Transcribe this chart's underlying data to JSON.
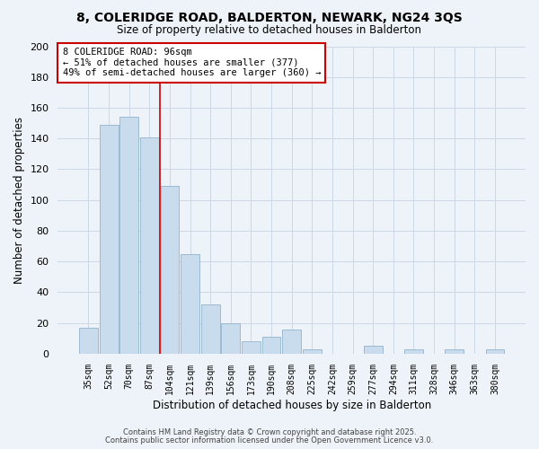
{
  "title": "8, COLERIDGE ROAD, BALDERTON, NEWARK, NG24 3QS",
  "subtitle": "Size of property relative to detached houses in Balderton",
  "xlabel": "Distribution of detached houses by size in Balderton",
  "ylabel": "Number of detached properties",
  "bar_color": "#c8dcee",
  "bar_edge_color": "#92b4cc",
  "bar_linewidth": 0.6,
  "categories": [
    "35sqm",
    "52sqm",
    "70sqm",
    "87sqm",
    "104sqm",
    "121sqm",
    "139sqm",
    "156sqm",
    "173sqm",
    "190sqm",
    "208sqm",
    "225sqm",
    "242sqm",
    "259sqm",
    "277sqm",
    "294sqm",
    "311sqm",
    "328sqm",
    "346sqm",
    "363sqm",
    "380sqm"
  ],
  "values": [
    17,
    149,
    154,
    141,
    109,
    65,
    32,
    20,
    8,
    11,
    16,
    3,
    0,
    0,
    5,
    0,
    3,
    0,
    3,
    0,
    3
  ],
  "ylim": [
    0,
    200
  ],
  "yticks": [
    0,
    20,
    40,
    60,
    80,
    100,
    120,
    140,
    160,
    180,
    200
  ],
  "vline_x": 3.5,
  "vline_color": "#cc0000",
  "vline_linewidth": 1.2,
  "annotation_title": "8 COLERIDGE ROAD: 96sqm",
  "annotation_line2": "← 51% of detached houses are smaller (377)",
  "annotation_line3": "49% of semi-detached houses are larger (360) →",
  "annotation_box_color": "#ffffff",
  "annotation_box_edgecolor": "#cc0000",
  "grid_color": "#ccd8e4",
  "background_color": "#edf3f8",
  "footer1": "Contains HM Land Registry data © Crown copyright and database right 2025.",
  "footer2": "Contains public sector information licensed under the Open Government Licence v3.0."
}
